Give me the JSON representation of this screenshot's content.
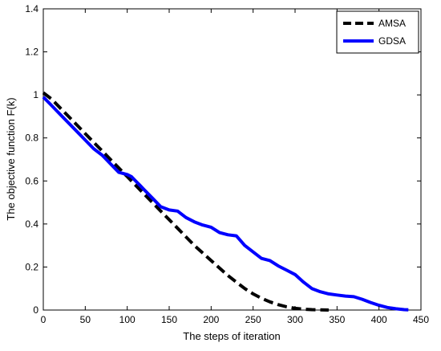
{
  "chart_data": {
    "type": "line",
    "title": "",
    "xlabel": "The steps of iteration",
    "ylabel": "The objective function F(k)",
    "xlim": [
      0,
      450
    ],
    "ylim": [
      0,
      1.4
    ],
    "x_ticks": [
      0,
      50,
      100,
      150,
      200,
      250,
      300,
      350,
      400,
      450
    ],
    "y_ticks": [
      0,
      0.2,
      0.4,
      0.6,
      0.8,
      1,
      1.2,
      1.4
    ],
    "grid": false,
    "legend_position": "top-right",
    "series": [
      {
        "name": "AMSA",
        "color": "#000000",
        "style": "dashed",
        "x": [
          0,
          10,
          20,
          30,
          40,
          50,
          60,
          70,
          80,
          90,
          100,
          110,
          120,
          130,
          140,
          150,
          160,
          170,
          180,
          190,
          200,
          210,
          220,
          230,
          240,
          250,
          260,
          270,
          280,
          290,
          300,
          310,
          320,
          330,
          340
        ],
        "y": [
          1.01,
          0.98,
          0.94,
          0.9,
          0.86,
          0.82,
          0.78,
          0.74,
          0.7,
          0.66,
          0.62,
          0.58,
          0.54,
          0.5,
          0.46,
          0.42,
          0.38,
          0.34,
          0.3,
          0.265,
          0.23,
          0.195,
          0.16,
          0.13,
          0.1,
          0.075,
          0.055,
          0.038,
          0.025,
          0.015,
          0.008,
          0.004,
          0.002,
          0.001,
          0.0
        ]
      },
      {
        "name": "GDSA",
        "color": "#0000ff",
        "style": "solid",
        "x": [
          0,
          10,
          20,
          30,
          40,
          50,
          60,
          70,
          80,
          90,
          100,
          105,
          110,
          115,
          120,
          130,
          140,
          150,
          160,
          170,
          180,
          190,
          200,
          210,
          220,
          230,
          240,
          250,
          260,
          270,
          280,
          290,
          300,
          310,
          320,
          330,
          340,
          350,
          360,
          370,
          380,
          390,
          400,
          410,
          420,
          430,
          435
        ],
        "y": [
          0.99,
          0.95,
          0.91,
          0.87,
          0.83,
          0.79,
          0.75,
          0.72,
          0.68,
          0.64,
          0.63,
          0.62,
          0.6,
          0.58,
          0.56,
          0.52,
          0.48,
          0.465,
          0.46,
          0.43,
          0.41,
          0.395,
          0.385,
          0.36,
          0.35,
          0.345,
          0.3,
          0.27,
          0.24,
          0.23,
          0.205,
          0.185,
          0.165,
          0.13,
          0.1,
          0.085,
          0.075,
          0.07,
          0.065,
          0.062,
          0.05,
          0.035,
          0.022,
          0.012,
          0.006,
          0.002,
          0.001
        ]
      }
    ]
  }
}
